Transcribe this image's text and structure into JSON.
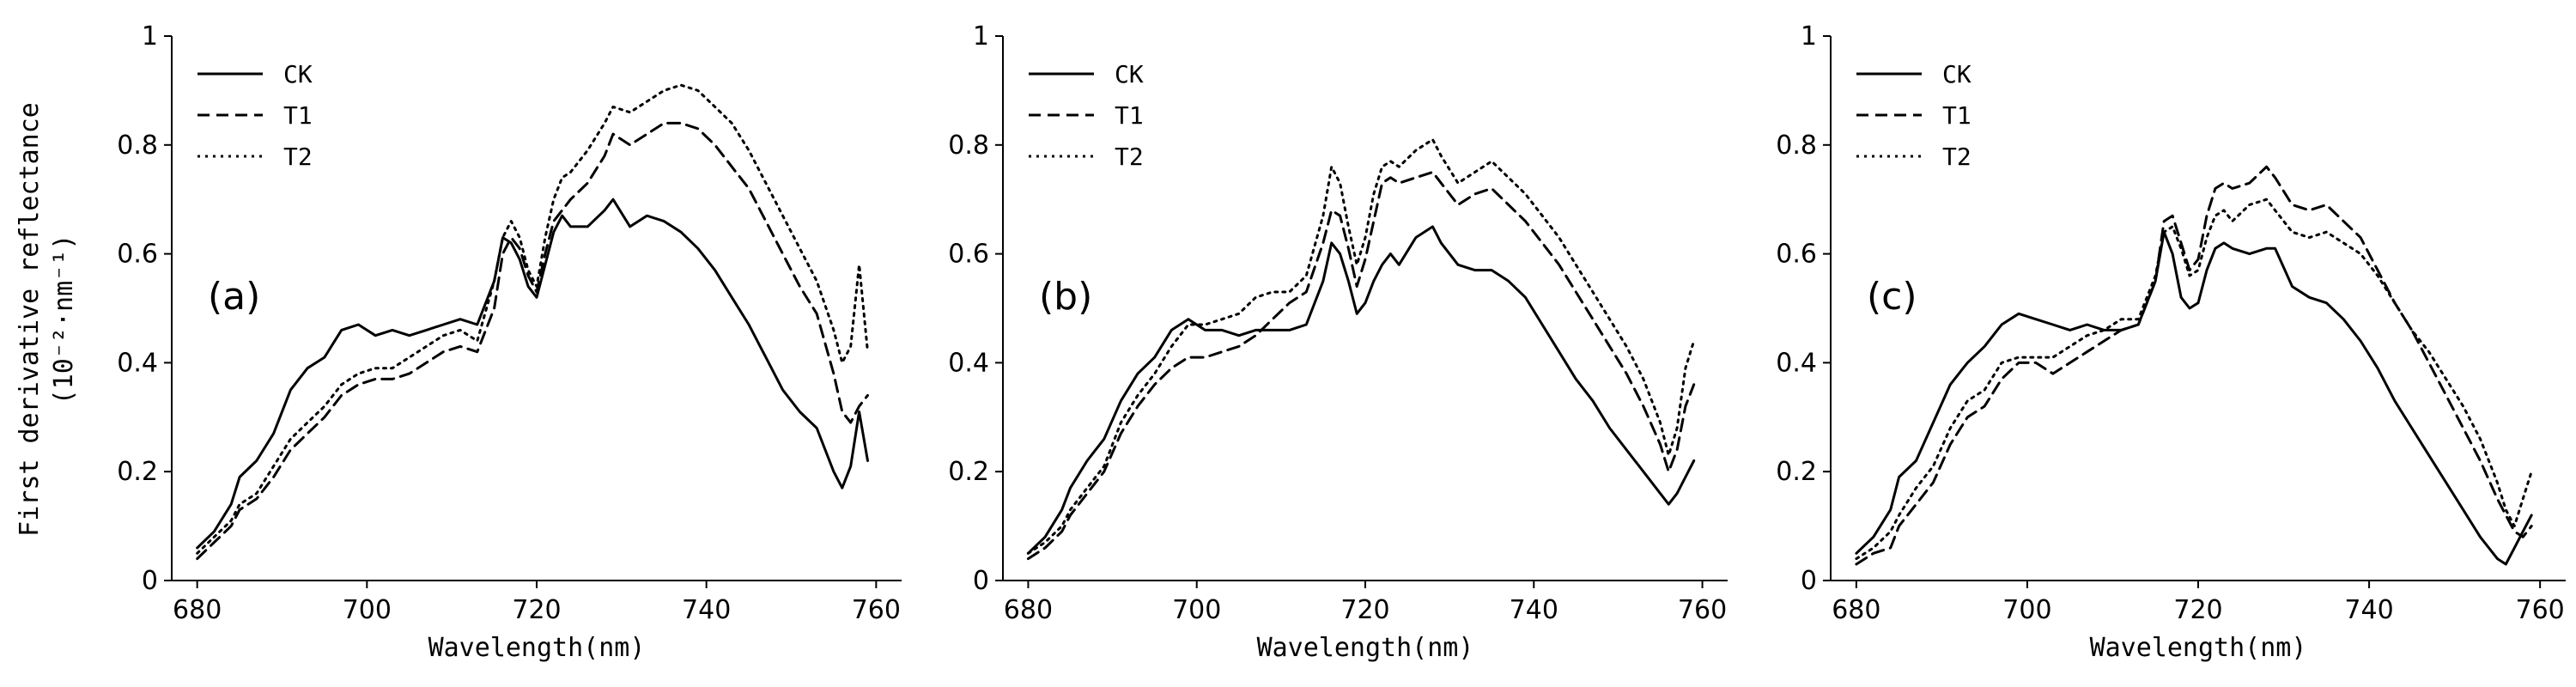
{
  "ylabel_line1": "First derivative reflectance",
  "ylabel_line2": "(10⁻²·nm⁻¹)",
  "chart_data": [
    {
      "type": "line",
      "annotation": "(a)",
      "xlabel": "Wavelength(nm)",
      "xlim": [
        677,
        763
      ],
      "ylim": [
        0,
        1
      ],
      "xticks": [
        "680",
        "700",
        "720",
        "740",
        "760"
      ],
      "yticks": [
        "0",
        "0.2",
        "0.4",
        "0.6",
        "0.8",
        "1"
      ],
      "legend_position": "top-left",
      "x": [
        680,
        682,
        684,
        685,
        687,
        689,
        691,
        693,
        695,
        697,
        699,
        701,
        703,
        705,
        707,
        709,
        711,
        713,
        715,
        716,
        717,
        718,
        719,
        720,
        721,
        722,
        723,
        724,
        726,
        728,
        729,
        731,
        733,
        735,
        737,
        739,
        741,
        743,
        745,
        747,
        749,
        751,
        753,
        755,
        756,
        757,
        758,
        759
      ],
      "series": [
        {
          "name": "CK",
          "style": "solid",
          "values": [
            0.06,
            0.09,
            0.14,
            0.19,
            0.22,
            0.27,
            0.35,
            0.39,
            0.41,
            0.46,
            0.47,
            0.45,
            0.46,
            0.45,
            0.46,
            0.47,
            0.48,
            0.47,
            0.55,
            0.63,
            0.62,
            0.59,
            0.54,
            0.52,
            0.58,
            0.64,
            0.67,
            0.65,
            0.65,
            0.68,
            0.7,
            0.65,
            0.67,
            0.66,
            0.64,
            0.61,
            0.57,
            0.52,
            0.47,
            0.41,
            0.35,
            0.31,
            0.28,
            0.2,
            0.17,
            0.21,
            0.31,
            0.22
          ]
        },
        {
          "name": "T1",
          "style": "dashed",
          "values": [
            0.04,
            0.07,
            0.1,
            0.13,
            0.15,
            0.19,
            0.24,
            0.27,
            0.3,
            0.34,
            0.36,
            0.37,
            0.37,
            0.38,
            0.4,
            0.42,
            0.43,
            0.42,
            0.5,
            0.6,
            0.63,
            0.61,
            0.56,
            0.53,
            0.6,
            0.66,
            0.68,
            0.7,
            0.73,
            0.78,
            0.82,
            0.8,
            0.82,
            0.84,
            0.84,
            0.83,
            0.8,
            0.76,
            0.72,
            0.66,
            0.6,
            0.54,
            0.49,
            0.38,
            0.31,
            0.29,
            0.32,
            0.34
          ]
        },
        {
          "name": "T2",
          "style": "dotted",
          "values": [
            0.05,
            0.08,
            0.11,
            0.14,
            0.16,
            0.21,
            0.26,
            0.29,
            0.32,
            0.36,
            0.38,
            0.39,
            0.39,
            0.41,
            0.43,
            0.45,
            0.46,
            0.44,
            0.55,
            0.63,
            0.66,
            0.63,
            0.57,
            0.54,
            0.63,
            0.7,
            0.74,
            0.75,
            0.79,
            0.84,
            0.87,
            0.86,
            0.88,
            0.9,
            0.91,
            0.9,
            0.87,
            0.84,
            0.79,
            0.73,
            0.67,
            0.61,
            0.55,
            0.46,
            0.4,
            0.43,
            0.58,
            0.42
          ]
        }
      ]
    },
    {
      "type": "line",
      "annotation": "(b)",
      "xlabel": "Wavelength(nm)",
      "xlim": [
        677,
        763
      ],
      "ylim": [
        0,
        1
      ],
      "xticks": [
        "680",
        "700",
        "720",
        "740",
        "760"
      ],
      "yticks": [
        "0",
        "0.2",
        "0.4",
        "0.6",
        "0.8",
        "1"
      ],
      "legend_position": "top-left",
      "x": [
        680,
        682,
        684,
        685,
        687,
        689,
        691,
        693,
        695,
        697,
        699,
        701,
        703,
        705,
        707,
        709,
        711,
        713,
        715,
        716,
        717,
        718,
        719,
        720,
        721,
        722,
        723,
        724,
        726,
        728,
        729,
        731,
        733,
        735,
        737,
        739,
        741,
        743,
        745,
        747,
        749,
        751,
        753,
        755,
        756,
        757,
        758,
        759
      ],
      "series": [
        {
          "name": "CK",
          "style": "solid",
          "values": [
            0.05,
            0.08,
            0.13,
            0.17,
            0.22,
            0.26,
            0.33,
            0.38,
            0.41,
            0.46,
            0.48,
            0.46,
            0.46,
            0.45,
            0.46,
            0.46,
            0.46,
            0.47,
            0.55,
            0.62,
            0.6,
            0.55,
            0.49,
            0.51,
            0.55,
            0.58,
            0.6,
            0.58,
            0.63,
            0.65,
            0.62,
            0.58,
            0.57,
            0.57,
            0.55,
            0.52,
            0.47,
            0.42,
            0.37,
            0.33,
            0.28,
            0.24,
            0.2,
            0.16,
            0.14,
            0.16,
            0.19,
            0.22
          ]
        },
        {
          "name": "T1",
          "style": "dashed",
          "values": [
            0.04,
            0.06,
            0.09,
            0.12,
            0.16,
            0.2,
            0.27,
            0.32,
            0.36,
            0.39,
            0.41,
            0.41,
            0.42,
            0.43,
            0.45,
            0.48,
            0.51,
            0.53,
            0.62,
            0.68,
            0.67,
            0.61,
            0.54,
            0.59,
            0.66,
            0.73,
            0.74,
            0.73,
            0.74,
            0.75,
            0.73,
            0.69,
            0.71,
            0.72,
            0.69,
            0.66,
            0.62,
            0.58,
            0.53,
            0.48,
            0.43,
            0.38,
            0.32,
            0.25,
            0.2,
            0.24,
            0.32,
            0.36
          ]
        },
        {
          "name": "T2",
          "style": "dotted",
          "values": [
            0.05,
            0.07,
            0.1,
            0.13,
            0.17,
            0.21,
            0.29,
            0.34,
            0.38,
            0.43,
            0.47,
            0.47,
            0.48,
            0.49,
            0.52,
            0.53,
            0.53,
            0.56,
            0.67,
            0.76,
            0.73,
            0.65,
            0.58,
            0.63,
            0.71,
            0.76,
            0.77,
            0.76,
            0.79,
            0.81,
            0.78,
            0.73,
            0.75,
            0.77,
            0.74,
            0.71,
            0.67,
            0.63,
            0.58,
            0.53,
            0.48,
            0.43,
            0.37,
            0.29,
            0.23,
            0.28,
            0.39,
            0.44
          ]
        }
      ]
    },
    {
      "type": "line",
      "annotation": "(c)",
      "xlabel": "Wavelength(nm)",
      "xlim": [
        677,
        763
      ],
      "ylim": [
        0,
        1
      ],
      "xticks": [
        "680",
        "700",
        "720",
        "740",
        "760"
      ],
      "yticks": [
        "0",
        "0.2",
        "0.4",
        "0.6",
        "0.8",
        "1"
      ],
      "legend_position": "top-left",
      "x": [
        680,
        682,
        684,
        685,
        687,
        689,
        691,
        693,
        695,
        697,
        699,
        701,
        703,
        705,
        707,
        709,
        711,
        713,
        715,
        716,
        717,
        718,
        719,
        720,
        721,
        722,
        723,
        724,
        726,
        728,
        729,
        731,
        733,
        735,
        737,
        739,
        741,
        743,
        745,
        747,
        749,
        751,
        753,
        755,
        756,
        757,
        758,
        759
      ],
      "series": [
        {
          "name": "CK",
          "style": "solid",
          "values": [
            0.05,
            0.08,
            0.13,
            0.19,
            0.22,
            0.29,
            0.36,
            0.4,
            0.43,
            0.47,
            0.49,
            0.48,
            0.47,
            0.46,
            0.47,
            0.46,
            0.46,
            0.47,
            0.55,
            0.64,
            0.6,
            0.52,
            0.5,
            0.51,
            0.57,
            0.61,
            0.62,
            0.61,
            0.6,
            0.61,
            0.61,
            0.54,
            0.52,
            0.51,
            0.48,
            0.44,
            0.39,
            0.33,
            0.28,
            0.23,
            0.18,
            0.13,
            0.08,
            0.04,
            0.03,
            0.06,
            0.09,
            0.12
          ]
        },
        {
          "name": "T1",
          "style": "dashed",
          "values": [
            0.03,
            0.05,
            0.06,
            0.1,
            0.14,
            0.18,
            0.25,
            0.3,
            0.32,
            0.37,
            0.4,
            0.4,
            0.38,
            0.4,
            0.42,
            0.44,
            0.46,
            0.47,
            0.55,
            0.66,
            0.67,
            0.62,
            0.57,
            0.59,
            0.67,
            0.72,
            0.73,
            0.72,
            0.73,
            0.76,
            0.74,
            0.69,
            0.68,
            0.69,
            0.66,
            0.63,
            0.57,
            0.51,
            0.46,
            0.4,
            0.34,
            0.28,
            0.22,
            0.15,
            0.12,
            0.09,
            0.08,
            0.1
          ]
        },
        {
          "name": "T2",
          "style": "dotted",
          "values": [
            0.04,
            0.06,
            0.09,
            0.12,
            0.17,
            0.21,
            0.28,
            0.33,
            0.35,
            0.4,
            0.41,
            0.41,
            0.41,
            0.43,
            0.45,
            0.46,
            0.48,
            0.48,
            0.56,
            0.64,
            0.65,
            0.61,
            0.56,
            0.57,
            0.63,
            0.67,
            0.68,
            0.66,
            0.69,
            0.7,
            0.68,
            0.64,
            0.63,
            0.64,
            0.62,
            0.6,
            0.56,
            0.51,
            0.46,
            0.42,
            0.37,
            0.32,
            0.26,
            0.18,
            0.13,
            0.1,
            0.15,
            0.2
          ]
        }
      ]
    }
  ]
}
